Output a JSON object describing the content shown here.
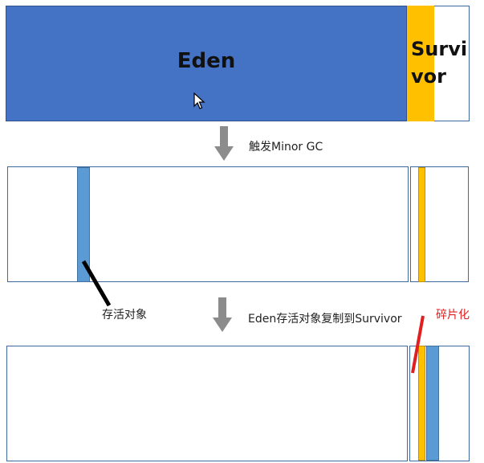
{
  "stage1": {
    "eden_label": "Eden",
    "survivor_label_line1": "Survi",
    "survivor_label_line2": "vor"
  },
  "step1": {
    "caption": "触发Minor GC"
  },
  "stage2": {
    "live_label": "存活对象"
  },
  "step2": {
    "caption": "Eden存活对象复制到Survivor"
  },
  "stage3": {
    "fragment_label": "碎片化"
  },
  "colors": {
    "eden": "#4472c4",
    "survivor": "#ffc000",
    "live_object": "#5b9bd5",
    "arrow": "#8c8c8c",
    "fragment_marker": "#e02020"
  }
}
